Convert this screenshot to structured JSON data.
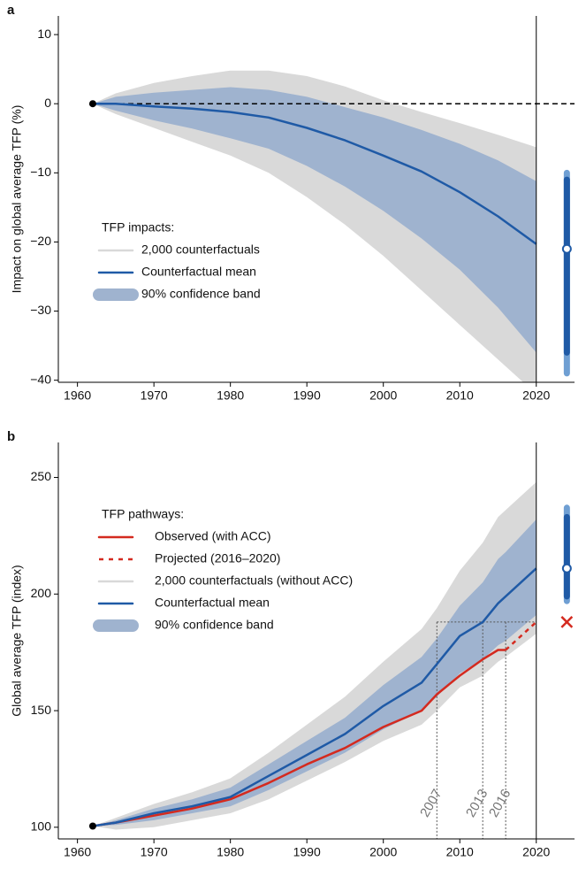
{
  "chart_data": [
    {
      "type": "line",
      "panel_label": "a",
      "y_label": "Impact on global average TFP (%)",
      "legend_title": "TFP impacts:",
      "x": [
        1962,
        1965,
        1970,
        1975,
        1980,
        1985,
        1990,
        1995,
        2000,
        2005,
        2010,
        2015,
        2020
      ],
      "xlim": [
        1957.5,
        2025
      ],
      "xticks": [
        1960,
        1970,
        1980,
        1990,
        2000,
        2010,
        2020
      ],
      "ylim": [
        -40.3,
        12.7
      ],
      "yticks": [
        {
          "value": -40,
          "label": "−40"
        },
        {
          "value": -30,
          "label": "−30"
        },
        {
          "value": -20,
          "label": "−20"
        },
        {
          "value": -10,
          "label": "−10"
        },
        0,
        10
      ],
      "divider_x": 2020,
      "reference_level": 0,
      "series": [
        {
          "name": "2,000 counterfactuals",
          "kind": "band",
          "color": "#d9d9d9",
          "upper": [
            0,
            1.5,
            3,
            4,
            4.8,
            4.8,
            4,
            2.5,
            0.5,
            -1.2,
            -2.8,
            -4.5,
            -6.3
          ],
          "lower": [
            0,
            -1.5,
            -3.5,
            -5.5,
            -7.5,
            -10,
            -13.5,
            -17.5,
            -22,
            -27,
            -32,
            -37,
            -42
          ]
        },
        {
          "name": "Counterfactual mean",
          "kind": "line",
          "color": "#1f5aa6",
          "values": [
            0,
            0,
            -0.4,
            -0.7,
            -1.2,
            -2,
            -3.5,
            -5.3,
            -7.5,
            -9.8,
            -12.8,
            -16.3,
            -20.3
          ]
        },
        {
          "name": "90% confidence band",
          "kind": "band",
          "color": "#9fb3cf",
          "upper": [
            0,
            1,
            1.6,
            2,
            2.4,
            2,
            1,
            -0.5,
            -2,
            -3.8,
            -5.8,
            -8.2,
            -11.2
          ],
          "lower": [
            0,
            -1,
            -2.4,
            -3.6,
            -5,
            -6.5,
            -9,
            -12,
            -15.5,
            -19.5,
            -24,
            -29.5,
            -36
          ]
        }
      ],
      "end_estimate": {
        "x": 2024,
        "value": -21,
        "inner": [
          -36,
          -11
        ],
        "outer": [
          -39,
          -10
        ]
      }
    },
    {
      "type": "line",
      "panel_label": "b",
      "y_label": "Global average TFP (index)",
      "legend_title": "TFP pathways:",
      "x": [
        1962,
        1965,
        1970,
        1975,
        1980,
        1985,
        1990,
        1995,
        2000,
        2005,
        2007,
        2010,
        2013,
        2015,
        2016,
        2020
      ],
      "xlim": [
        1957.5,
        2025
      ],
      "xticks": [
        1960,
        1970,
        1980,
        1990,
        2000,
        2010,
        2020
      ],
      "ylim": [
        95,
        265
      ],
      "yticks": [
        100,
        150,
        200,
        250
      ],
      "divider_x": 2020,
      "reference_level": 188,
      "reference_years": [
        2007,
        2013,
        2016
      ],
      "series": [
        {
          "name": "Observed (with ACC)",
          "kind": "line",
          "color": "#d42a1f",
          "values": [
            100.5,
            102,
            105,
            108,
            112,
            119,
            127,
            134,
            143,
            150,
            157,
            165,
            172,
            176,
            176,
            null
          ]
        },
        {
          "name": "Projected (2016–2020)",
          "kind": "line",
          "dash": true,
          "color": "#d42a1f",
          "values": [
            null,
            null,
            null,
            null,
            null,
            null,
            null,
            null,
            null,
            null,
            null,
            null,
            null,
            null,
            176,
            188
          ]
        },
        {
          "name": "2,000 counterfactuals (without ACC)",
          "kind": "band",
          "color": "#d9d9d9",
          "upper": [
            100.5,
            104,
            110,
            115,
            121,
            132,
            144,
            156,
            171,
            185,
            194,
            210,
            222,
            233,
            236,
            248
          ],
          "lower": [
            100.5,
            99,
            100,
            103,
            106,
            112,
            120,
            128,
            137,
            144,
            150,
            160,
            165,
            171,
            173,
            183
          ]
        },
        {
          "name": "Counterfactual mean",
          "kind": "line",
          "color": "#1f5aa6",
          "values": [
            100.5,
            102,
            106,
            109,
            113,
            122,
            131,
            140,
            152,
            162,
            170,
            182,
            188,
            196,
            199,
            211
          ]
        },
        {
          "name": "90% confidence band",
          "kind": "band",
          "color": "#9fb3cf",
          "upper": [
            100.5,
            103,
            108,
            112,
            117,
            127,
            137,
            147,
            161,
            173,
            181,
            195,
            205,
            215,
            218,
            232
          ],
          "lower": [
            100.5,
            101,
            103,
            106,
            109,
            116,
            124,
            132,
            142,
            150,
            156,
            166,
            172,
            178,
            180,
            191
          ]
        }
      ],
      "end_estimate": {
        "x": 2024,
        "value": 211,
        "inner": [
          199,
          233
        ],
        "outer": [
          197,
          237
        ],
        "projected_value": 188
      }
    }
  ]
}
